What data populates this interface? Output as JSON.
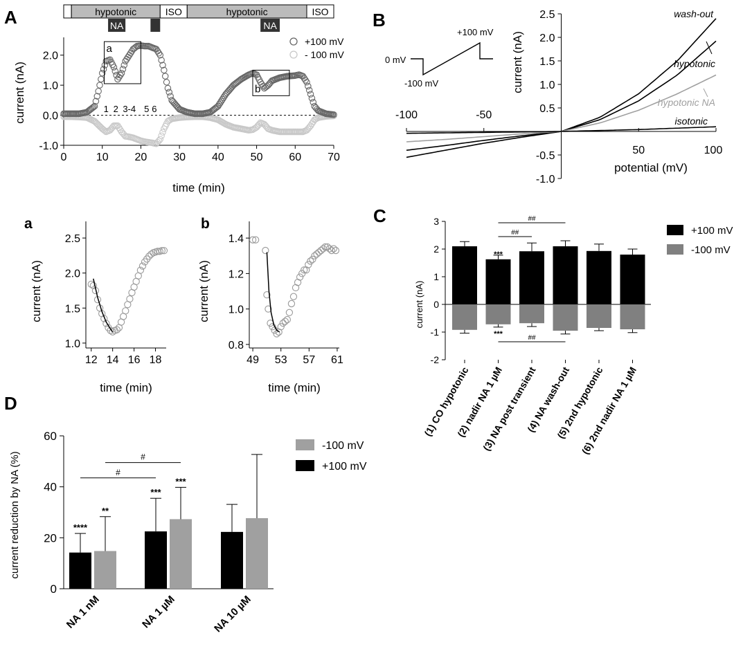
{
  "colors": {
    "pos": "#666666",
    "neg": "#c8c8c8",
    "black": "#000000",
    "gray": "#999999",
    "barGray": "#808080",
    "barLightGray": "#a0a0a0",
    "stimGray": "#bbbbbb",
    "stimDark": "#333333"
  },
  "chart_data": [
    {
      "panel_letter": "A",
      "type": "scatter",
      "xlabel": "time (min)",
      "ylabel": "current (nA)",
      "xlim": [
        0,
        70
      ],
      "ylim": [
        -1.0,
        2.5
      ],
      "xticks": [
        0,
        10,
        20,
        30,
        40,
        50,
        60,
        70
      ],
      "yticks": [
        -1.0,
        0.0,
        1.0,
        2.0
      ],
      "ytick_labels": [
        "-1.0",
        "0.0",
        "1.0",
        "2.0"
      ],
      "zero_line": "dashed",
      "legend": [
        "+100 mV",
        "- 100 mV"
      ],
      "legend_position": "top-right",
      "time_markers": [
        "1",
        "2",
        "3-4",
        "5",
        "6"
      ],
      "time_marker_x": [
        11,
        13.5,
        17,
        21.5,
        23.5
      ],
      "stimulus_bar": [
        {
          "label": "",
          "start": 0,
          "end": 2,
          "style": "white"
        },
        {
          "label": "hypotonic",
          "start": 2,
          "end": 25,
          "style": "gray"
        },
        {
          "label": "ISO",
          "start": 25,
          "end": 32,
          "style": "white"
        },
        {
          "label": "hypotonic",
          "start": 32,
          "end": 63,
          "style": "gray"
        },
        {
          "label": "ISO",
          "start": 63,
          "end": 70,
          "style": "white"
        }
      ],
      "drug_bar": [
        {
          "label": "NA",
          "start": 11.5,
          "end": 16
        },
        {
          "label": "",
          "start": 22.5,
          "end": 25
        },
        {
          "label": "NA",
          "start": 51,
          "end": 56
        }
      ],
      "insets": [
        {
          "label": "a",
          "x": [
            10.5,
            20
          ],
          "y": [
            1.05,
            2.45
          ]
        },
        {
          "label": "b",
          "x": [
            49,
            58.5
          ],
          "y": [
            0.65,
            1.5
          ]
        }
      ],
      "series": [
        {
          "name": "+100 mV",
          "x": [
            0,
            2,
            4,
            6,
            8,
            9,
            10,
            11,
            12,
            13,
            14,
            15,
            16,
            17,
            18,
            19,
            20,
            21,
            22,
            23,
            24,
            25,
            26,
            27,
            28,
            30,
            32,
            34,
            36,
            38,
            40,
            42,
            44,
            46,
            48,
            49,
            50,
            51,
            52,
            53,
            54,
            56,
            58,
            60,
            61,
            62,
            63,
            64,
            65,
            66,
            68,
            70
          ],
          "y": [
            0.05,
            0.05,
            0.05,
            0.1,
            0.3,
            0.8,
            1.4,
            1.8,
            1.85,
            1.6,
            1.2,
            1.4,
            1.8,
            2.0,
            2.2,
            2.3,
            2.32,
            2.3,
            2.3,
            2.25,
            2.2,
            2.0,
            1.5,
            0.9,
            0.5,
            0.2,
            0.1,
            0.05,
            0.05,
            0.1,
            0.3,
            0.7,
            1.0,
            1.2,
            1.35,
            1.4,
            1.35,
            1.1,
            0.9,
            1.0,
            1.15,
            1.25,
            1.3,
            1.32,
            1.35,
            1.3,
            1.1,
            0.7,
            0.3,
            0.15,
            0.05,
            0.02
          ]
        },
        {
          "name": "- 100 mV",
          "x": [
            0,
            2,
            4,
            6,
            8,
            10,
            11,
            12,
            13,
            14,
            15,
            16,
            17,
            18,
            19,
            20,
            21,
            22,
            23,
            24,
            25,
            26,
            27,
            28,
            30,
            32,
            34,
            36,
            38,
            40,
            42,
            44,
            46,
            48,
            49,
            50,
            51,
            52,
            53,
            54,
            56,
            58,
            60,
            62,
            63,
            64,
            65,
            66,
            68,
            70
          ],
          "y": [
            -0.05,
            -0.05,
            -0.06,
            -0.08,
            -0.2,
            -0.45,
            -0.55,
            -0.5,
            -0.35,
            -0.35,
            -0.55,
            -0.7,
            -0.72,
            -0.75,
            -0.8,
            -0.85,
            -0.88,
            -0.9,
            -0.92,
            -0.95,
            -0.8,
            -0.45,
            -0.2,
            -0.12,
            -0.08,
            -0.06,
            -0.05,
            -0.05,
            -0.08,
            -0.15,
            -0.3,
            -0.4,
            -0.45,
            -0.5,
            -0.48,
            -0.4,
            -0.25,
            -0.3,
            -0.45,
            -0.5,
            -0.55,
            -0.55,
            -0.55,
            -0.55,
            -0.5,
            -0.35,
            -0.15,
            -0.08,
            -0.04,
            -0.02
          ]
        }
      ]
    },
    {
      "panel_letter": "B",
      "type": "line",
      "xlabel": "potential (mV)",
      "ylabel": "current (nA)",
      "xlim": [
        -100,
        100
      ],
      "ylim": [
        -1.0,
        2.5
      ],
      "xticks": [
        -100,
        -50,
        50,
        100
      ],
      "xtick_labels_top": [
        "-100",
        "-50"
      ],
      "xtick_labels_bottom": [
        "50",
        "100"
      ],
      "yticks": [
        -1.0,
        -0.5,
        0.5,
        1.0,
        1.5,
        2.0,
        2.5
      ],
      "ytick_labels": [
        "-1.0",
        "-0.5",
        "0.5",
        "1.0",
        "1.5",
        "2.0",
        "2.5"
      ],
      "protocol_labels": [
        "0 mV",
        "-100 mV",
        "+100 mV"
      ],
      "series": [
        {
          "name": "wash-out",
          "x": [
            -100,
            -75,
            -50,
            -25,
            0,
            25,
            50,
            75,
            100
          ],
          "y": [
            -0.55,
            -0.4,
            -0.25,
            -0.12,
            0,
            0.3,
            0.8,
            1.5,
            2.4
          ]
        },
        {
          "name": "hypotonic",
          "x": [
            -100,
            -75,
            -50,
            -25,
            0,
            25,
            50,
            75,
            100
          ],
          "y": [
            -0.4,
            -0.3,
            -0.19,
            -0.09,
            0,
            0.25,
            0.65,
            1.2,
            1.92
          ]
        },
        {
          "name": "hypotonic NA",
          "x": [
            -100,
            -75,
            -50,
            -25,
            0,
            25,
            50,
            75,
            100
          ],
          "y": [
            -0.22,
            -0.17,
            -0.11,
            -0.05,
            0,
            0.18,
            0.45,
            0.8,
            1.2
          ]
        },
        {
          "name": "isotonic",
          "x": [
            -100,
            -75,
            -50,
            -25,
            0,
            25,
            50,
            75,
            100
          ],
          "y": [
            -0.04,
            -0.03,
            -0.02,
            -0.01,
            0,
            0.02,
            0.04,
            0.07,
            0.1
          ]
        }
      ]
    },
    {
      "panel_letter": "a",
      "type": "scatter",
      "xlabel": "time (min)",
      "ylabel": "current (nA)",
      "xlim": [
        11.5,
        19
      ],
      "ylim": [
        0.93,
        2.55
      ],
      "xticks": [
        12,
        14,
        16,
        18
      ],
      "yticks": [
        1.0,
        1.5,
        2.0,
        2.5
      ],
      "ytick_labels": [
        "1.0",
        "1.5",
        "2.0",
        "2.5"
      ],
      "points": {
        "x": [
          12.0,
          12.2,
          12.4,
          12.6,
          12.8,
          13.0,
          13.2,
          13.4,
          13.6,
          13.8,
          14.0,
          14.2,
          14.4,
          14.6,
          14.8,
          15.0,
          15.2,
          15.4,
          15.6,
          15.8,
          16.0,
          16.2,
          16.4,
          16.6,
          16.8,
          17.0,
          17.2,
          17.4,
          17.6,
          17.8,
          18.0,
          18.2,
          18.4,
          18.6,
          18.8
        ],
        "y": [
          1.84,
          1.82,
          1.75,
          1.62,
          1.5,
          1.42,
          1.35,
          1.28,
          1.22,
          1.18,
          1.16,
          1.18,
          1.19,
          1.22,
          1.3,
          1.38,
          1.46,
          1.55,
          1.63,
          1.72,
          1.8,
          1.88,
          1.96,
          2.04,
          2.1,
          2.16,
          2.2,
          2.24,
          2.27,
          2.29,
          2.3,
          2.31,
          2.31,
          2.32,
          2.32
        ]
      },
      "fit": {
        "x": [
          12.2,
          12.6,
          13.0,
          13.4,
          13.8,
          14.0
        ],
        "y": [
          1.92,
          1.65,
          1.45,
          1.3,
          1.2,
          1.16
        ]
      }
    },
    {
      "panel_letter": "b",
      "type": "scatter",
      "xlabel": "time (min)",
      "ylabel": "current (nA)",
      "xlim": [
        48.5,
        61.3
      ],
      "ylim": [
        0.78,
        1.42
      ],
      "xticks": [
        49,
        53,
        57,
        61
      ],
      "yticks": [
        0.8,
        1.0,
        1.2,
        1.4
      ],
      "ytick_labels": [
        "0.8",
        "1.0",
        "1.2",
        "1.4"
      ],
      "points": {
        "x": [
          49.0,
          49.4,
          50.8,
          51.0,
          51.2,
          51.5,
          51.8,
          52.1,
          52.4,
          52.7,
          53.0,
          53.3,
          53.6,
          53.9,
          54.2,
          54.5,
          54.8,
          55.1,
          55.4,
          55.7,
          56.0,
          56.3,
          56.6,
          56.9,
          57.2,
          57.5,
          57.8,
          58.1,
          58.4,
          58.7,
          59.0,
          59.3,
          59.6,
          59.9,
          60.2,
          60.5,
          60.8
        ],
        "y": [
          1.39,
          1.39,
          1.33,
          1.08,
          1.0,
          0.92,
          0.9,
          0.88,
          0.86,
          0.87,
          0.9,
          0.92,
          0.93,
          0.94,
          0.98,
          1.03,
          1.07,
          1.12,
          1.15,
          1.18,
          1.2,
          1.22,
          1.22,
          1.25,
          1.27,
          1.28,
          1.3,
          1.31,
          1.32,
          1.33,
          1.34,
          1.35,
          1.35,
          1.34,
          1.33,
          1.34,
          1.33
        ]
      },
      "fit": {
        "x": [
          51.0,
          51.3,
          51.6,
          52.0,
          52.4,
          52.8
        ],
        "y": [
          1.32,
          1.1,
          0.98,
          0.91,
          0.88,
          0.87
        ]
      }
    },
    {
      "panel_letter": "C",
      "type": "bar",
      "ylabel": "current (nA)",
      "ylim": [
        -2,
        3
      ],
      "yticks": [
        -2,
        -1,
        0,
        1,
        2,
        3
      ],
      "ytick_labels": [
        "-2",
        "-1",
        "0",
        "1",
        "2",
        "3"
      ],
      "legend_position": "top-right",
      "categories": [
        "(1) CO hypotonic",
        "(2) nadir NA 1 µM",
        "(3) NA post transient",
        "(4) NA wash-out",
        "(5) 2nd hypotonic",
        "(6) 2nd nadir NA 1 µM"
      ],
      "series": [
        {
          "name": "+100 mV",
          "values": [
            2.1,
            1.63,
            1.92,
            2.1,
            1.93,
            1.8
          ],
          "errors": [
            0.17,
            0.15,
            0.3,
            0.2,
            0.25,
            0.2
          ]
        },
        {
          "name": "-100 mV",
          "values": [
            -0.92,
            -0.72,
            -0.68,
            -0.95,
            -0.85,
            -0.9
          ],
          "errors": [
            0.12,
            0.1,
            0.12,
            0.12,
            0.1,
            0.12
          ]
        }
      ],
      "annotations": [
        {
          "text": "***",
          "category": 1,
          "y": 1.85
        },
        {
          "text": "***",
          "category": 1,
          "y": -1.02
        }
      ],
      "brackets": [
        {
          "text": "##",
          "from": 1,
          "to": 3,
          "y": 2.95
        },
        {
          "text": "##",
          "from": 1,
          "to": 2,
          "y": 2.45
        },
        {
          "text": "##",
          "from": 1,
          "to": 3,
          "y": -1.35
        }
      ]
    },
    {
      "panel_letter": "D",
      "type": "bar",
      "ylabel": "current reduction by NA (%)",
      "ylim": [
        0,
        60
      ],
      "yticks": [
        0,
        20,
        40,
        60
      ],
      "ytick_labels": [
        "0",
        "20",
        "40",
        "60"
      ],
      "legend_position": "top-right",
      "categories": [
        "NA 1 nM",
        "NA 1 µM",
        "NA 10 µM"
      ],
      "series": [
        {
          "name": "+100 mV",
          "values": [
            14.2,
            22.5,
            22.3
          ],
          "errors": [
            7.5,
            13,
            10.8
          ],
          "stars": [
            "****",
            "***",
            ""
          ]
        },
        {
          "name": "-100 mV",
          "values": [
            14.8,
            27.3,
            27.7
          ],
          "errors": [
            13.5,
            12.5,
            25
          ],
          "stars": [
            "**",
            "***",
            ""
          ]
        }
      ],
      "legend_order": [
        "-100 mV",
        "+100 mV"
      ],
      "brackets": [
        {
          "text": "#",
          "series_from": 0,
          "cat_from": 0,
          "series_to": 0,
          "cat_to": 1,
          "y": 43.5
        },
        {
          "text": "#",
          "series_from": 1,
          "cat_from": 0,
          "series_to": 1,
          "cat_to": 1,
          "y": 49.5
        }
      ]
    }
  ]
}
